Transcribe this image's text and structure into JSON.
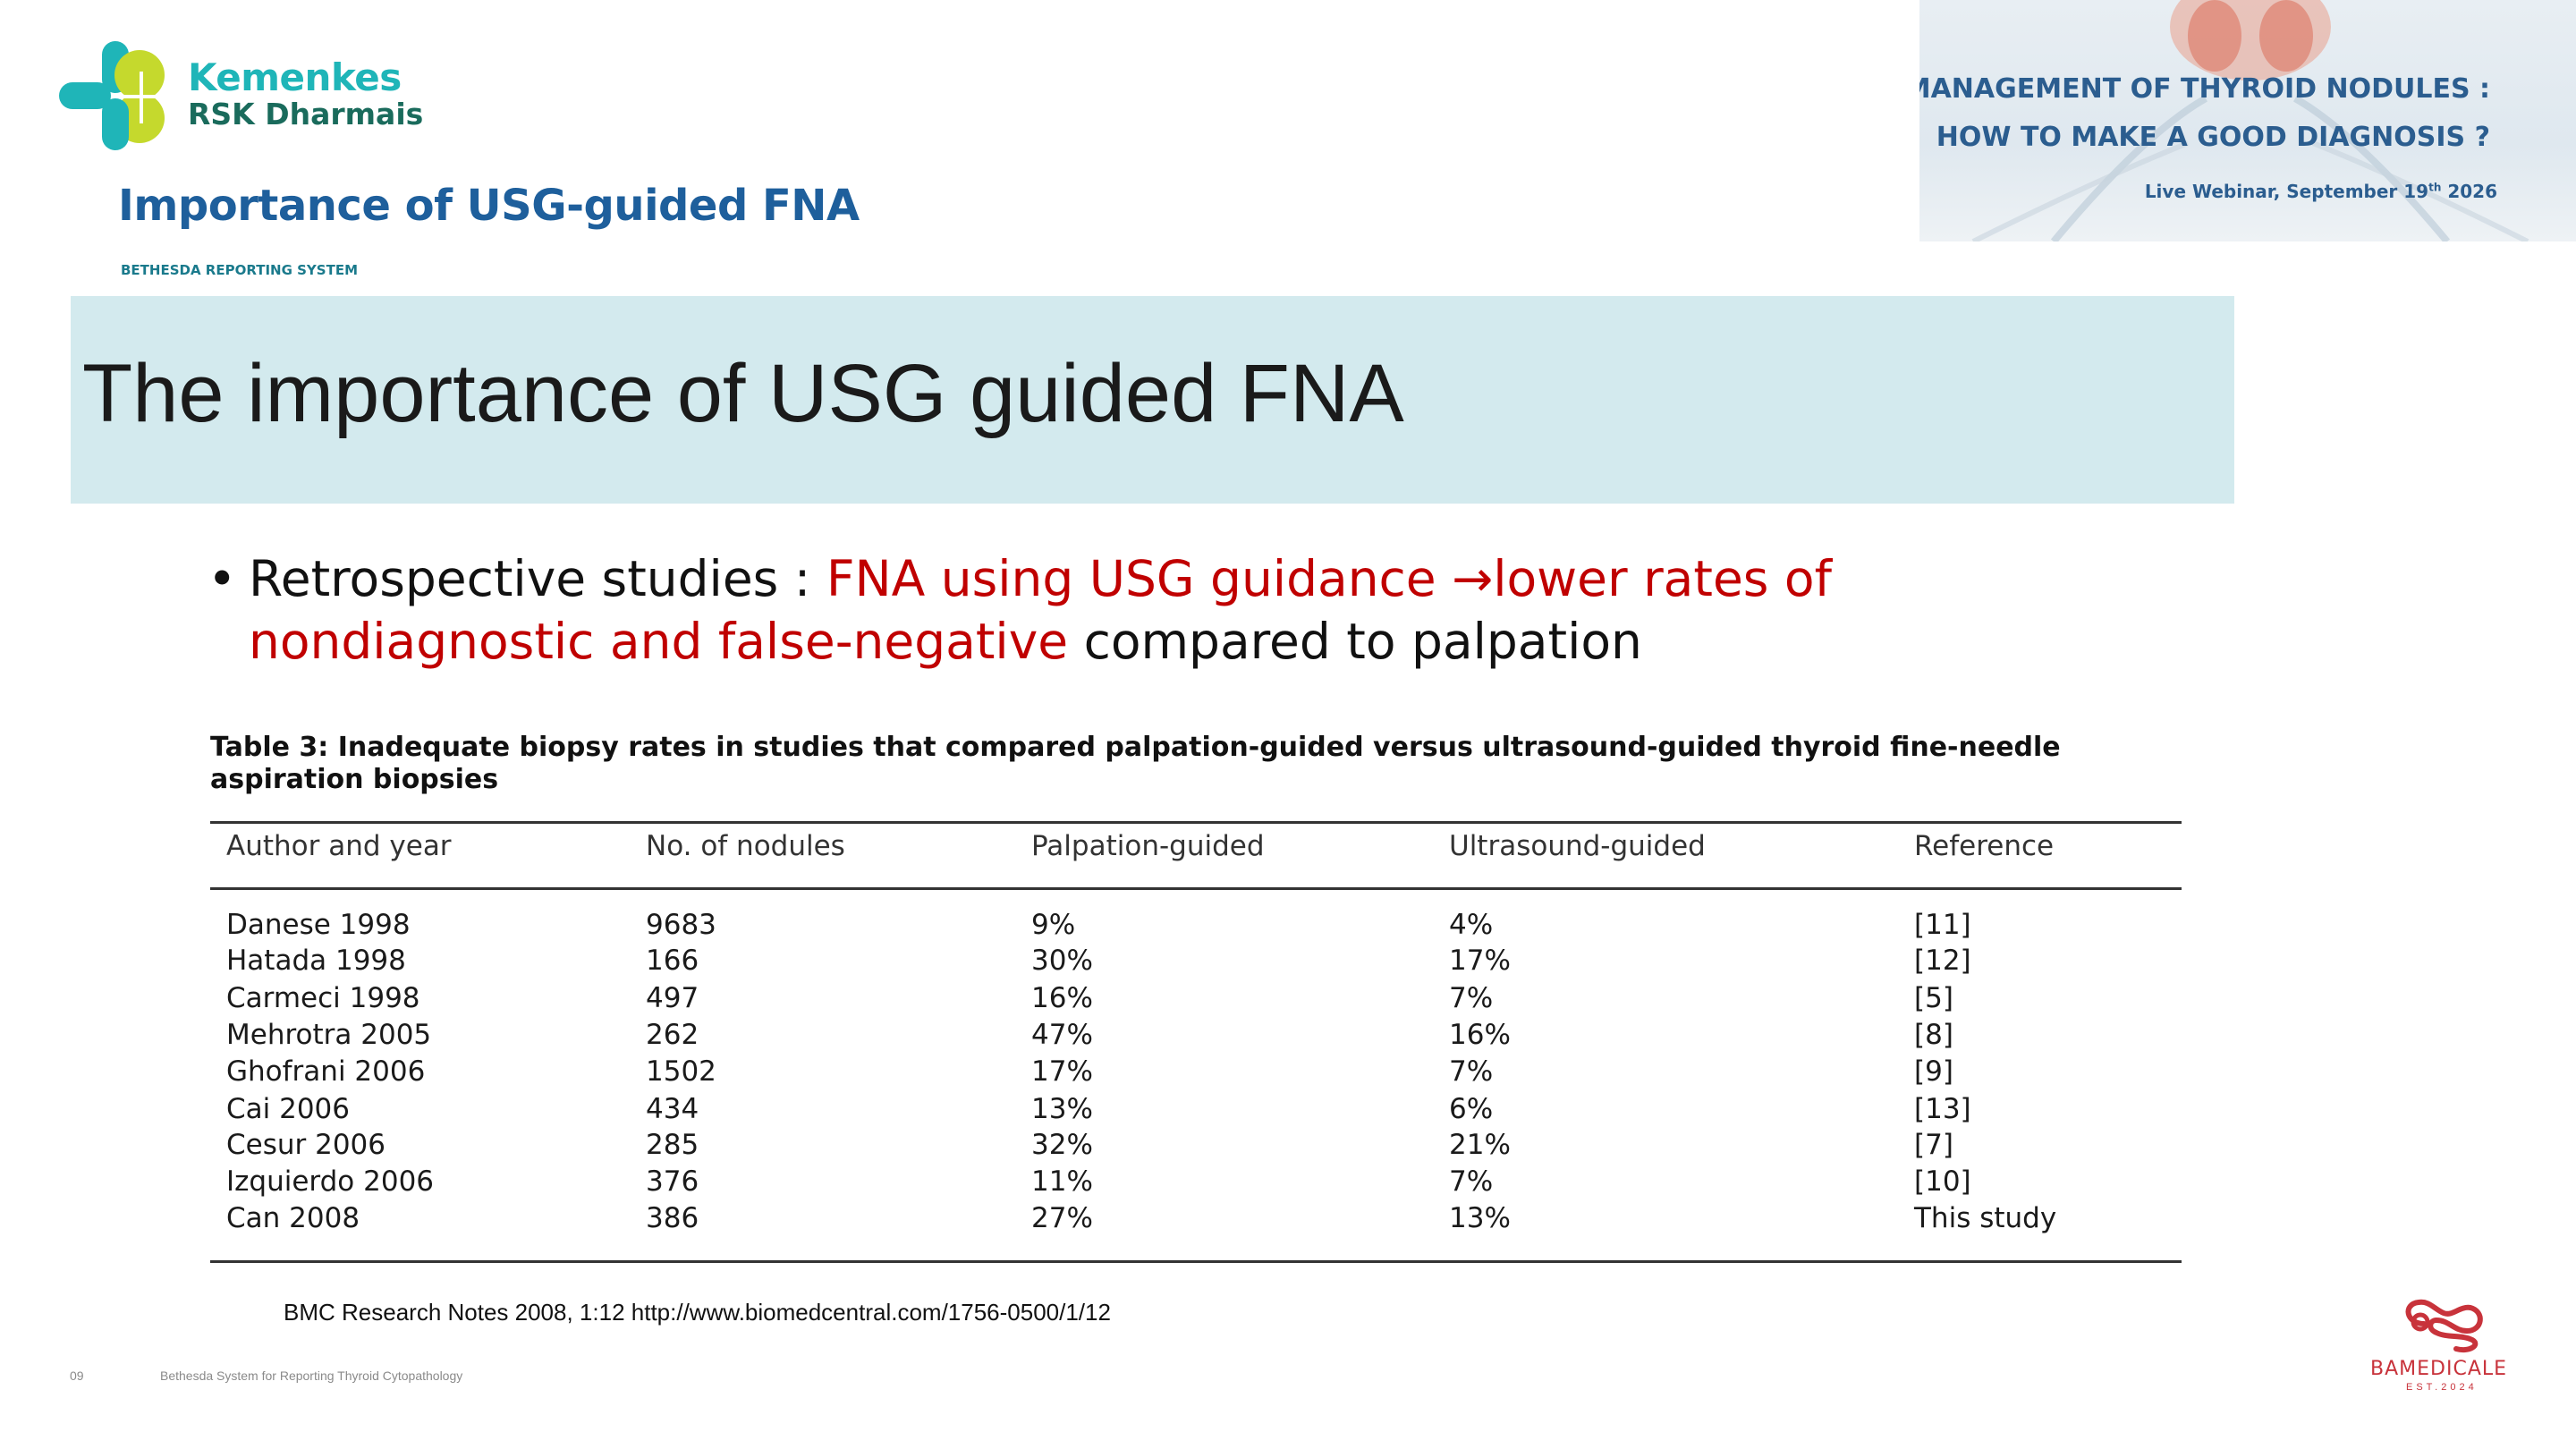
{
  "brand": {
    "line1": "Kemenkes",
    "line2": "RSK Dharmais"
  },
  "page_title": "Importance of USG-guided FNA",
  "section_label": "BETHESDA REPORTING SYSTEM",
  "banner": {
    "title_line1": "MANAGEMENT OF THYROID NODULES :",
    "title_line2": "HOW TO MAKE A GOOD DIAGNOSIS ?",
    "date_prefix": "Live Webinar, September 19",
    "date_sup": "th",
    "date_year": " 2026"
  },
  "slide": {
    "heading": "The importance of USG guided FNA",
    "bullet_glyph": "•",
    "bullet_part1": "Retrospective studies : ",
    "bullet_red1": "FNA using USG guidance ",
    "bullet_arrow": "→",
    "bullet_red2": "lower rates of",
    "bullet_red3": "nondiagnostic and false-negative",
    "bullet_part2": " compared to palpation",
    "table_caption": "Table 3: Inadequate biopsy rates in studies that compared palpation-guided versus ultrasound-guided thyroid fine-needle aspiration biopsies",
    "table": {
      "headers": [
        "Author and year",
        "No. of nodules",
        "Palpation-guided",
        "Ultrasound-guided",
        "Reference"
      ],
      "rows": [
        [
          "Danese 1998",
          "9683",
          "9%",
          "4%",
          "[11]"
        ],
        [
          "Hatada 1998",
          "166",
          "30%",
          "17%",
          "[12]"
        ],
        [
          "Carmeci 1998",
          "497",
          "16%",
          "7%",
          "[5]"
        ],
        [
          "Mehrotra 2005",
          "262",
          "47%",
          "16%",
          "[8]"
        ],
        [
          "Ghofrani 2006",
          "1502",
          "17%",
          "7%",
          "[9]"
        ],
        [
          "Cai 2006",
          "434",
          "13%",
          "6%",
          "[13]"
        ],
        [
          "Cesur 2006",
          "285",
          "32%",
          "21%",
          "[7]"
        ],
        [
          "Izquierdo 2006",
          "376",
          "11%",
          "7%",
          "[10]"
        ],
        [
          "Can 2008",
          "386",
          "27%",
          "13%",
          "This study"
        ]
      ]
    },
    "source": "BMC Research Notes 2008, 1:12   http://www.biomedcentral.com/1756-0500/1/12"
  },
  "footer": {
    "page_number": "09",
    "text": "Bethesda System for Reporting Thyroid Cytopathology"
  },
  "partner_logo": {
    "name": "BAMEDICALE",
    "est": "EST.2024"
  },
  "colors": {
    "accent_teal": "#1fb5b8",
    "accent_lime": "#c5d92d",
    "title_blue": "#1e5f9c",
    "highlight_red": "#c00000",
    "brand_red": "#c8333b"
  }
}
